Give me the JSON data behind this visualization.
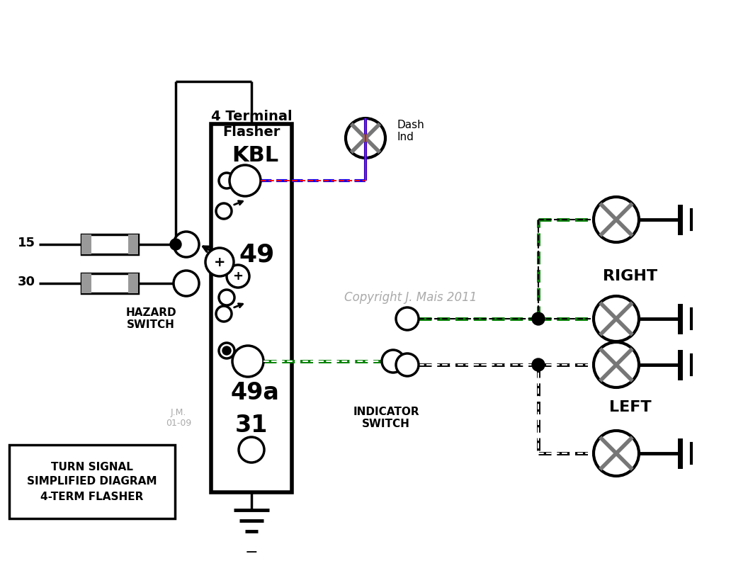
{
  "background": "#ffffff",
  "copyright": "Copyright J. Mais 2011",
  "jm_label": "J.M.\n01-09",
  "legend_text": "TURN SIGNAL\nSIMPLIFIED DIAGRAM\n4-TERM FLASHER"
}
